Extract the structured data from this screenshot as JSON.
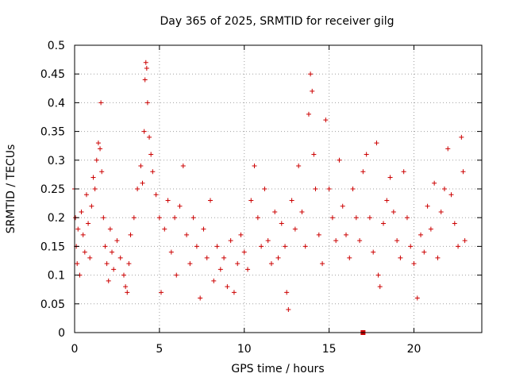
{
  "chart_data": {
    "type": "scatter",
    "title": "Day 365 of 2025, SRMTID for receiver gilg",
    "xlabel": "GPS time / hours",
    "ylabel": "SRMTID / TECUs",
    "xlim": [
      0,
      24
    ],
    "ylim": [
      0,
      0.5
    ],
    "x_ticks": [
      0,
      5,
      10,
      15,
      20
    ],
    "x_tick_labels": [
      "0",
      "5",
      "10",
      "15",
      "20"
    ],
    "y_ticks": [
      0,
      0.05,
      0.1,
      0.15,
      0.2,
      0.25,
      0.3,
      0.35,
      0.4,
      0.45,
      0.5
    ],
    "y_tick_labels": [
      "0",
      "0.05",
      "0.1",
      "0.15",
      "0.2",
      "0.25",
      "0.3",
      "0.35",
      "0.4",
      "0.45",
      "0.5"
    ],
    "grid": true,
    "marker": "+",
    "color": "#cc0000",
    "sample_points": [
      [
        0.0,
        0.25
      ],
      [
        0.05,
        0.2
      ],
      [
        0.1,
        0.15
      ],
      [
        0.15,
        0.12
      ],
      [
        0.2,
        0.18
      ],
      [
        0.3,
        0.1
      ],
      [
        0.4,
        0.21
      ],
      [
        0.5,
        0.17
      ],
      [
        0.6,
        0.14
      ],
      [
        0.7,
        0.24
      ],
      [
        0.8,
        0.19
      ],
      [
        0.9,
        0.13
      ],
      [
        1.0,
        0.22
      ],
      [
        1.1,
        0.27
      ],
      [
        1.2,
        0.25
      ],
      [
        1.3,
        0.3
      ],
      [
        1.4,
        0.33
      ],
      [
        1.5,
        0.32
      ],
      [
        1.55,
        0.4
      ],
      [
        1.6,
        0.28
      ],
      [
        1.7,
        0.2
      ],
      [
        1.8,
        0.15
      ],
      [
        1.9,
        0.12
      ],
      [
        2.0,
        0.09
      ],
      [
        2.1,
        0.18
      ],
      [
        2.2,
        0.14
      ],
      [
        2.3,
        0.11
      ],
      [
        2.5,
        0.16
      ],
      [
        2.7,
        0.13
      ],
      [
        2.9,
        0.1
      ],
      [
        3.0,
        0.08
      ],
      [
        3.1,
        0.07
      ],
      [
        3.2,
        0.12
      ],
      [
        3.3,
        0.17
      ],
      [
        3.5,
        0.2
      ],
      [
        3.7,
        0.25
      ],
      [
        3.9,
        0.29
      ],
      [
        4.0,
        0.26
      ],
      [
        4.1,
        0.35
      ],
      [
        4.15,
        0.44
      ],
      [
        4.2,
        0.47
      ],
      [
        4.25,
        0.46
      ],
      [
        4.3,
        0.4
      ],
      [
        4.4,
        0.34
      ],
      [
        4.5,
        0.31
      ],
      [
        4.6,
        0.28
      ],
      [
        4.8,
        0.24
      ],
      [
        5.0,
        0.2
      ],
      [
        5.1,
        0.07
      ],
      [
        5.3,
        0.18
      ],
      [
        5.5,
        0.23
      ],
      [
        5.7,
        0.14
      ],
      [
        5.9,
        0.2
      ],
      [
        6.0,
        0.1
      ],
      [
        6.2,
        0.22
      ],
      [
        6.4,
        0.29
      ],
      [
        6.6,
        0.17
      ],
      [
        6.8,
        0.12
      ],
      [
        7.0,
        0.2
      ],
      [
        7.2,
        0.15
      ],
      [
        7.4,
        0.06
      ],
      [
        7.6,
        0.18
      ],
      [
        7.8,
        0.13
      ],
      [
        8.0,
        0.23
      ],
      [
        8.2,
        0.09
      ],
      [
        8.4,
        0.15
      ],
      [
        8.6,
        0.11
      ],
      [
        8.8,
        0.13
      ],
      [
        9.0,
        0.08
      ],
      [
        9.2,
        0.16
      ],
      [
        9.4,
        0.07
      ],
      [
        9.6,
        0.12
      ],
      [
        9.8,
        0.17
      ],
      [
        10.0,
        0.14
      ],
      [
        10.2,
        0.11
      ],
      [
        10.4,
        0.23
      ],
      [
        10.6,
        0.29
      ],
      [
        10.8,
        0.2
      ],
      [
        11.0,
        0.15
      ],
      [
        11.2,
        0.25
      ],
      [
        11.4,
        0.16
      ],
      [
        11.6,
        0.12
      ],
      [
        11.8,
        0.21
      ],
      [
        12.0,
        0.13
      ],
      [
        12.2,
        0.19
      ],
      [
        12.4,
        0.15
      ],
      [
        12.5,
        0.07
      ],
      [
        12.6,
        0.04
      ],
      [
        12.8,
        0.23
      ],
      [
        13.0,
        0.18
      ],
      [
        13.2,
        0.29
      ],
      [
        13.4,
        0.21
      ],
      [
        13.6,
        0.15
      ],
      [
        13.8,
        0.38
      ],
      [
        13.9,
        0.45
      ],
      [
        14.0,
        0.42
      ],
      [
        14.1,
        0.31
      ],
      [
        14.2,
        0.25
      ],
      [
        14.4,
        0.17
      ],
      [
        14.6,
        0.12
      ],
      [
        14.8,
        0.37
      ],
      [
        15.0,
        0.25
      ],
      [
        15.2,
        0.2
      ],
      [
        15.4,
        0.16
      ],
      [
        15.6,
        0.3
      ],
      [
        15.8,
        0.22
      ],
      [
        16.0,
        0.17
      ],
      [
        16.2,
        0.13
      ],
      [
        16.4,
        0.25
      ],
      [
        16.6,
        0.2
      ],
      [
        16.8,
        0.16
      ],
      [
        17.0,
        0.28
      ],
      [
        17.2,
        0.31
      ],
      [
        17.4,
        0.2
      ],
      [
        17.6,
        0.14
      ],
      [
        17.8,
        0.33
      ],
      [
        17.9,
        0.1
      ],
      [
        18.0,
        0.08
      ],
      [
        18.2,
        0.19
      ],
      [
        18.4,
        0.23
      ],
      [
        18.6,
        0.27
      ],
      [
        18.8,
        0.21
      ],
      [
        19.0,
        0.16
      ],
      [
        19.2,
        0.13
      ],
      [
        19.4,
        0.28
      ],
      [
        19.6,
        0.2
      ],
      [
        19.8,
        0.15
      ],
      [
        20.0,
        0.12
      ],
      [
        20.2,
        0.06
      ],
      [
        20.4,
        0.17
      ],
      [
        20.6,
        0.14
      ],
      [
        20.8,
        0.22
      ],
      [
        21.0,
        0.18
      ],
      [
        21.2,
        0.26
      ],
      [
        21.4,
        0.13
      ],
      [
        21.6,
        0.21
      ],
      [
        21.8,
        0.25
      ],
      [
        22.0,
        0.32
      ],
      [
        22.2,
        0.24
      ],
      [
        22.4,
        0.19
      ],
      [
        22.6,
        0.15
      ],
      [
        22.8,
        0.34
      ],
      [
        22.9,
        0.28
      ],
      [
        23.0,
        0.16
      ]
    ],
    "highlighted_point": {
      "x": 17.0,
      "y": 0.0,
      "marker": "square"
    }
  }
}
